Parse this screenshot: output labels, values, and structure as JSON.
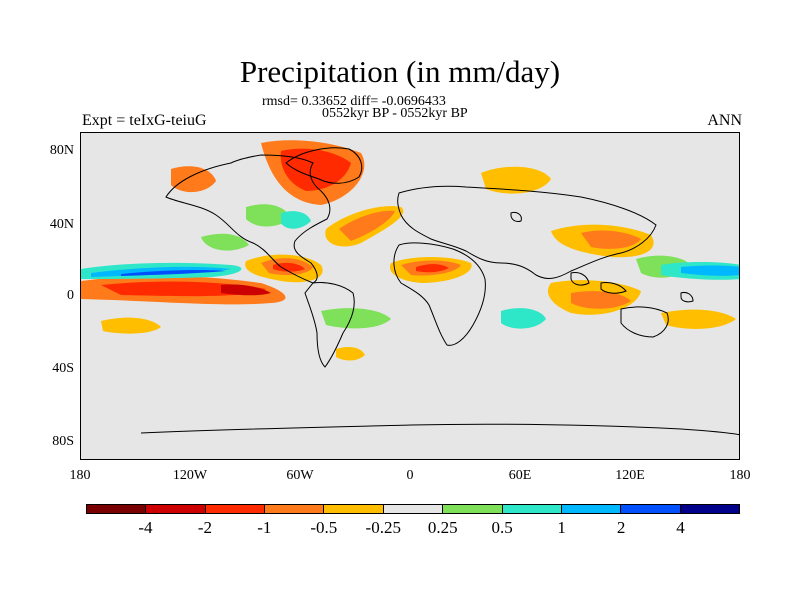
{
  "title": "Precipitation (in mm/day)",
  "stats": "rmsd= 0.33652 diff= -0.0696433",
  "period": "0552kyr BP - 0552kyr BP",
  "experiment": "Expt = teIxG-teiuG",
  "season": "ANN",
  "map": {
    "ocean_color": "#e6e6e6",
    "coast_color": "#000000"
  },
  "y_ticks": [
    "80N",
    "40N",
    "0",
    "40S",
    "80S"
  ],
  "x_ticks": [
    "180",
    "120W",
    "60W",
    "0",
    "60E",
    "120E",
    "180"
  ],
  "colorbar": {
    "colors": [
      "#7a0000",
      "#cc0000",
      "#ff2a00",
      "#ff7a1a",
      "#ffbf00",
      "#e6e6e6",
      "#7fe05a",
      "#2ee6c8",
      "#00b8ff",
      "#0050ff",
      "#00008a"
    ],
    "labels": [
      "-4",
      "-2",
      "-1",
      "-0.5",
      "-0.25",
      "0.25",
      "0.5",
      "1",
      "2",
      "4"
    ]
  }
}
